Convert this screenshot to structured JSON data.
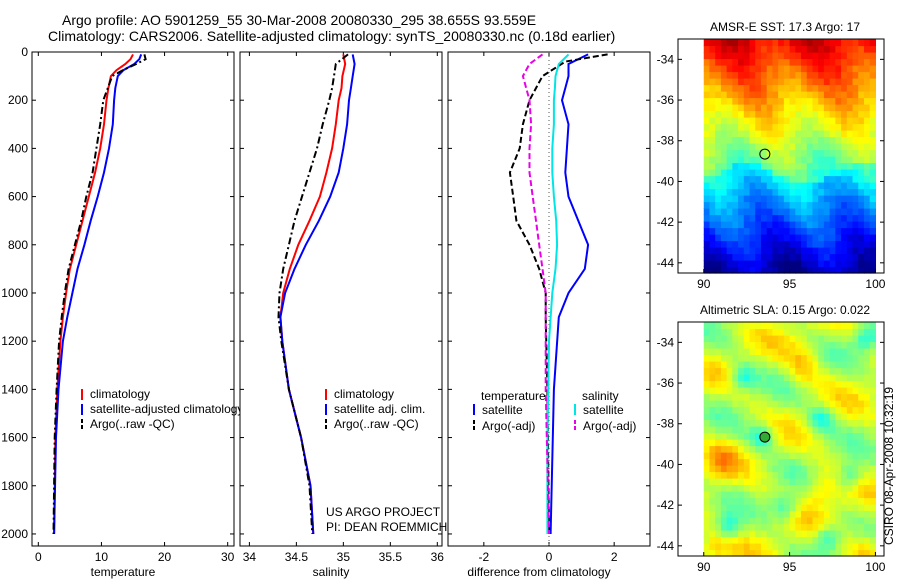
{
  "header": {
    "line1": "Argo profile: AO 5901259_55 30-Mar-2008 20080330_295 38.655S 93.559E",
    "line2": "Climatology: CARS2006. Satellite-adjusted climatology: synTS_20080330.nc (0.18d earlier)"
  },
  "footer": {
    "project": "US ARGO PROJECT",
    "pi": "PI: DEAN ROEMMICH",
    "stamp": "CSIRO 08-Apr-2008 10:32:19"
  },
  "colors": {
    "climatology": "#ff0000",
    "satellite": "#0000ff",
    "argo": "#000000",
    "sat_salinity": "#00e5e5",
    "argo_salinity_adj": "#e800e8"
  },
  "chart_data": [
    {
      "id": "temperature",
      "type": "line",
      "xlabel": "temperature",
      "xlim": [
        -1,
        31
      ],
      "xticks": [
        0,
        10,
        20,
        30
      ],
      "ylim": [
        2050,
        0
      ],
      "yticks": [
        0,
        200,
        400,
        600,
        800,
        1000,
        1200,
        1400,
        1600,
        1800,
        2000
      ],
      "y_inverted": true,
      "legend": [
        "climatology",
        "satellite-adjusted climatology",
        "Argo(..raw -QC)"
      ],
      "series": [
        {
          "name": "climatology",
          "color": "#ff0000",
          "dash": "solid",
          "x": [
            15.0,
            14.6,
            13.8,
            12.4,
            11.5,
            11.1,
            10.8,
            10.4,
            9.8,
            9.0,
            8.0,
            7.0,
            6.0,
            5.0,
            4.4,
            3.9,
            3.5,
            3.0,
            2.7,
            2.5
          ],
          "y": [
            10,
            30,
            50,
            75,
            100,
            150,
            200,
            300,
            400,
            500,
            600,
            700,
            800,
            900,
            1000,
            1100,
            1200,
            1400,
            1600,
            2000
          ]
        },
        {
          "name": "satellite-adjusted climatology",
          "color": "#0000ff",
          "dash": "solid",
          "x": [
            16.3,
            16.0,
            15.2,
            13.5,
            12.6,
            12.2,
            12.0,
            11.8,
            11.2,
            10.4,
            9.4,
            8.3,
            7.3,
            6.2,
            5.4,
            4.6,
            3.9,
            3.2,
            2.8,
            2.5
          ],
          "y": [
            10,
            30,
            50,
            75,
            100,
            150,
            200,
            300,
            400,
            500,
            600,
            700,
            800,
            900,
            1000,
            1100,
            1200,
            1400,
            1600,
            2000
          ]
        },
        {
          "name": "Argo(..raw -QC)",
          "color": "#000000",
          "dash": "dashdot",
          "x": [
            16.8,
            17.0,
            15.5,
            13.4,
            11.7,
            11.0,
            10.3,
            9.8,
            9.2,
            8.6,
            7.6,
            6.8,
            5.8,
            4.8,
            4.2,
            3.7,
            3.3,
            2.9,
            2.6,
            2.4
          ],
          "y": [
            10,
            30,
            50,
            75,
            100,
            150,
            200,
            300,
            400,
            500,
            600,
            700,
            800,
            900,
            1000,
            1100,
            1200,
            1400,
            1600,
            2000
          ]
        }
      ]
    },
    {
      "id": "salinity",
      "type": "line",
      "xlabel": "salinity",
      "xlim": [
        33.9,
        36.05
      ],
      "xticks": [
        34,
        34.5,
        35,
        35.5,
        36
      ],
      "ylim": [
        2050,
        0
      ],
      "y_inverted": true,
      "legend": [
        "climatology",
        "satellite adj. clim.",
        "Argo(..raw -QC)"
      ],
      "series": [
        {
          "name": "climatology",
          "color": "#ff0000",
          "dash": "solid",
          "x": [
            35.0,
            35.02,
            34.99,
            34.98,
            34.95,
            34.92,
            34.88,
            34.82,
            34.75,
            34.64,
            34.52,
            34.43,
            34.36,
            34.33,
            34.35,
            34.42,
            34.55,
            34.65,
            34.68
          ],
          "y": [
            10,
            50,
            100,
            150,
            200,
            300,
            400,
            500,
            600,
            700,
            800,
            900,
            1000,
            1100,
            1200,
            1400,
            1600,
            1800,
            2000
          ]
        },
        {
          "name": "satellite adj. clim.",
          "color": "#0000ff",
          "dash": "solid",
          "x": [
            35.1,
            35.12,
            35.1,
            35.08,
            35.06,
            35.04,
            35.0,
            34.95,
            34.86,
            34.74,
            34.6,
            34.48,
            34.38,
            34.33,
            34.35,
            34.42,
            34.55,
            34.65,
            34.68
          ],
          "y": [
            10,
            50,
            100,
            150,
            200,
            300,
            400,
            500,
            600,
            700,
            800,
            900,
            1000,
            1100,
            1200,
            1400,
            1600,
            1800,
            2000
          ]
        },
        {
          "name": "Argo(..raw -QC)",
          "color": "#000000",
          "dash": "dashdot",
          "x": [
            35.05,
            34.92,
            34.9,
            34.88,
            34.85,
            34.78,
            34.72,
            34.64,
            34.56,
            34.48,
            34.42,
            34.36,
            34.32,
            34.31,
            34.34,
            34.42,
            34.55,
            34.64,
            34.67
          ],
          "y": [
            10,
            50,
            100,
            150,
            200,
            300,
            400,
            500,
            600,
            700,
            800,
            900,
            1000,
            1100,
            1200,
            1400,
            1600,
            1800,
            2000
          ]
        }
      ]
    },
    {
      "id": "difference",
      "type": "line",
      "xlabel": "difference from climatology",
      "xlim": [
        -3.1,
        3.1
      ],
      "xticks": [
        -2,
        0,
        2
      ],
      "ylim": [
        2050,
        0
      ],
      "y_inverted": true,
      "zero_line": true,
      "legend_left_title": "temperature",
      "legend_right_title": "salinity",
      "legend": [
        "satellite",
        "Argo(-adj)",
        "satellite",
        "Argo(-adj)"
      ],
      "series": [
        {
          "name": "satellite",
          "group": "temperature",
          "color": "#0000ff",
          "dash": "solid",
          "x": [
            1.2,
            0.6,
            0.6,
            0.5,
            0.4,
            0.6,
            0.55,
            0.5,
            0.6,
            0.9,
            1.2,
            1.1,
            0.6,
            0.3,
            0.15,
            0.05
          ],
          "y": [
            10,
            50,
            100,
            150,
            200,
            300,
            400,
            500,
            600,
            700,
            800,
            900,
            1000,
            1100,
            1400,
            2000
          ]
        },
        {
          "name": "Argo(-adj)",
          "group": "temperature",
          "color": "#000000",
          "dash": "dash",
          "x": [
            1.8,
            0.5,
            -0.2,
            -0.4,
            -0.6,
            -0.8,
            -0.9,
            -1.2,
            -1.1,
            -1.0,
            -0.6,
            -0.3,
            -0.1,
            -0.1,
            -0.05,
            0.0
          ],
          "y": [
            10,
            40,
            100,
            150,
            200,
            300,
            400,
            500,
            600,
            700,
            800,
            900,
            1000,
            1100,
            1400,
            2000
          ]
        },
        {
          "name": "satellite",
          "group": "salinity",
          "color": "#00e5e5",
          "dash": "solid",
          "x": [
            0.6,
            0.3,
            0.2,
            0.18,
            0.15,
            0.15,
            0.1,
            0.1,
            0.15,
            0.22,
            0.25,
            0.2,
            0.1,
            0.0,
            -0.05,
            -0.05
          ],
          "y": [
            10,
            50,
            100,
            150,
            200,
            300,
            400,
            500,
            600,
            700,
            800,
            900,
            1000,
            1200,
            1600,
            2000
          ]
        },
        {
          "name": "Argo(-adj)",
          "group": "salinity",
          "color": "#e800e8",
          "dash": "dash",
          "x": [
            -0.2,
            -0.6,
            -0.8,
            -0.7,
            -0.6,
            -0.55,
            -0.6,
            -0.6,
            -0.5,
            -0.4,
            -0.3,
            -0.2,
            -0.1,
            -0.1,
            0.0
          ],
          "y": [
            10,
            50,
            100,
            150,
            200,
            300,
            400,
            500,
            600,
            700,
            800,
            900,
            1000,
            1400,
            2000
          ]
        }
      ]
    },
    {
      "id": "sst_map",
      "type": "heatmap",
      "title": "AMSR-E SST: 17.3 Argo: 17",
      "xlim": [
        88.5,
        100.5
      ],
      "xticks": [
        90,
        95,
        100
      ],
      "ylim": [
        -44.5,
        -33
      ],
      "yticks": [
        -34,
        -36,
        -38,
        -40,
        -42,
        -44
      ],
      "data_xlim": [
        90,
        100
      ],
      "marker": {
        "lon": 93.559,
        "lat": -38.655
      }
    },
    {
      "id": "sla_map",
      "type": "heatmap",
      "title": "Altimetric SLA: 0.15 Argo: 0.022",
      "xlim": [
        88.5,
        100.5
      ],
      "xticks": [
        90,
        95,
        100
      ],
      "ylim": [
        -44.5,
        -33
      ],
      "yticks": [
        -34,
        -36,
        -38,
        -40,
        -42,
        -44
      ],
      "data_xlim": [
        90,
        100
      ],
      "marker": {
        "lon": 93.559,
        "lat": -38.655
      }
    }
  ]
}
